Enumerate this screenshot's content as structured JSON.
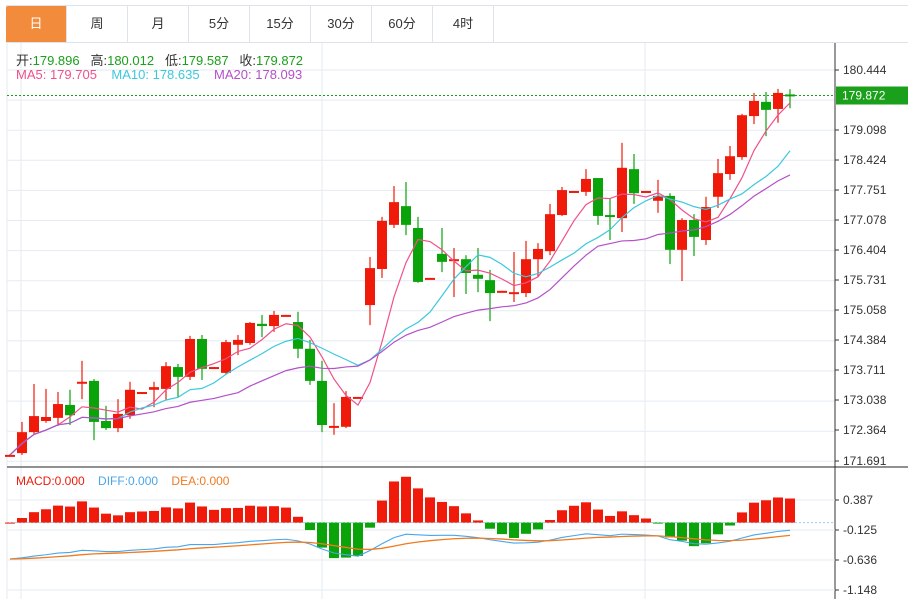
{
  "tabs": [
    {
      "label": "日",
      "active": true
    },
    {
      "label": "周"
    },
    {
      "label": "月"
    },
    {
      "label": "5分"
    },
    {
      "label": "15分"
    },
    {
      "label": "30分"
    },
    {
      "label": "60分"
    },
    {
      "label": "4时"
    }
  ],
  "ohlc_info": {
    "open_label": "开:",
    "open": "179.896",
    "high_label": "高:",
    "high": "180.012",
    "low_label": "低:",
    "low": "179.587",
    "close_label": "收:",
    "close": "179.872"
  },
  "ma_info": {
    "ma5": "MA5: 179.705",
    "ma10": "MA10: 178.635",
    "ma20": "MA20: 178.093"
  },
  "macd_info": {
    "macd": "MACD:0.000",
    "diff": "DIFF:0.000",
    "dea": "DEA:0.000"
  },
  "colors": {
    "up": "#f01a0a",
    "down": "#0aa30a",
    "ma5": "#f0508a",
    "ma10": "#3cc8dc",
    "ma20": "#b450c8",
    "diff": "#4aa6ea",
    "dea": "#f07a20",
    "tab_active": "#f28b3c",
    "price_tag": "#1aa01a"
  },
  "price_axis": {
    "ticks": [
      "180.444",
      "179.098",
      "178.424",
      "177.751",
      "177.078",
      "176.404",
      "175.731",
      "175.058",
      "174.384",
      "173.711",
      "173.038",
      "172.364",
      "171.691"
    ],
    "current": "179.872"
  },
  "macd_axis": {
    "ticks": [
      "0.387",
      "-0.125",
      "-0.636",
      "-1.148"
    ]
  },
  "chart_data": {
    "type": "candlestick",
    "ylim": [
      171.6,
      180.6
    ],
    "candles": [
      [
        171.8,
        171.81,
        171.83,
        171.79
      ],
      [
        171.85,
        172.32,
        172.55,
        171.81
      ],
      [
        172.32,
        172.68,
        173.4,
        172.26
      ],
      [
        172.57,
        172.66,
        173.29,
        172.53
      ],
      [
        172.64,
        172.95,
        173.22,
        172.46
      ],
      [
        172.93,
        172.7,
        173.27,
        172.48
      ],
      [
        173.44,
        173.45,
        173.92,
        173.06
      ],
      [
        173.47,
        172.55,
        173.51,
        172.14
      ],
      [
        172.57,
        172.41,
        172.91,
        172.37
      ],
      [
        172.41,
        172.73,
        173.06,
        172.32
      ],
      [
        172.7,
        173.27,
        173.45,
        172.62
      ],
      [
        173.21,
        173.22,
        173.22,
        173.21
      ],
      [
        173.27,
        173.33,
        173.45,
        172.88
      ],
      [
        173.29,
        173.8,
        173.89,
        173.04
      ],
      [
        173.78,
        173.56,
        173.85,
        173.11
      ],
      [
        173.56,
        174.41,
        174.48,
        173.49
      ],
      [
        174.41,
        173.74,
        174.5,
        173.49
      ],
      [
        173.77,
        173.78,
        173.78,
        173.77
      ],
      [
        173.65,
        174.34,
        174.39,
        173.62
      ],
      [
        174.28,
        174.39,
        174.5,
        174.05
      ],
      [
        174.32,
        174.77,
        174.79,
        174.28
      ],
      [
        174.75,
        174.7,
        174.95,
        174.45
      ],
      [
        174.7,
        174.95,
        175.04,
        174.57
      ],
      [
        174.94,
        174.95,
        174.95,
        174.94
      ],
      [
        174.79,
        174.19,
        175.02,
        173.98
      ],
      [
        174.19,
        173.47,
        174.39,
        173.38
      ],
      [
        173.47,
        172.48,
        173.92,
        172.32
      ],
      [
        172.45,
        172.46,
        172.97,
        172.26
      ],
      [
        172.44,
        173.11,
        173.24,
        172.41
      ],
      [
        173.1,
        173.11,
        173.11,
        173.1
      ],
      [
        175.17,
        176.0,
        176.25,
        174.72
      ],
      [
        175.98,
        177.06,
        177.15,
        175.78
      ],
      [
        176.97,
        177.48,
        177.84,
        176.9
      ],
      [
        177.39,
        176.97,
        177.93,
        176.74
      ],
      [
        176.9,
        175.69,
        177.15,
        175.67
      ],
      [
        175.77,
        175.78,
        175.78,
        175.77
      ],
      [
        176.32,
        176.14,
        176.9,
        175.91
      ],
      [
        176.16,
        176.2,
        176.45,
        175.35
      ],
      [
        176.2,
        175.89,
        176.29,
        175.42
      ],
      [
        175.85,
        175.76,
        176.45,
        175.46
      ],
      [
        175.73,
        175.44,
        175.96,
        174.81
      ],
      [
        175.48,
        175.49,
        175.49,
        175.48
      ],
      [
        175.42,
        175.46,
        176.36,
        175.24
      ],
      [
        175.44,
        176.2,
        176.61,
        175.35
      ],
      [
        176.2,
        176.43,
        176.56,
        175.8
      ],
      [
        176.38,
        177.21,
        177.44,
        176.29
      ],
      [
        177.19,
        177.75,
        177.82,
        177.17
      ],
      [
        177.73,
        177.73,
        177.73,
        177.73
      ],
      [
        177.71,
        178.0,
        178.22,
        177.62
      ],
      [
        178.02,
        177.17,
        178.02,
        176.97
      ],
      [
        177.19,
        177.15,
        177.57,
        176.63
      ],
      [
        177.12,
        178.25,
        178.81,
        176.81
      ],
      [
        178.22,
        177.68,
        178.56,
        177.44
      ],
      [
        177.72,
        177.73,
        177.73,
        177.72
      ],
      [
        177.51,
        177.62,
        177.98,
        177.24
      ],
      [
        177.62,
        176.41,
        177.68,
        176.09
      ],
      [
        176.41,
        177.08,
        177.12,
        175.71
      ],
      [
        177.08,
        176.7,
        177.21,
        176.27
      ],
      [
        176.63,
        177.37,
        177.6,
        176.52
      ],
      [
        177.6,
        178.13,
        178.45,
        177.35
      ],
      [
        178.11,
        178.51,
        178.74,
        177.98
      ],
      [
        178.49,
        179.43,
        179.46,
        178.43
      ],
      [
        179.41,
        179.75,
        179.93,
        179.23
      ],
      [
        179.73,
        179.55,
        179.95,
        178.96
      ],
      [
        179.57,
        179.93,
        180.02,
        179.26
      ],
      [
        179.896,
        179.872,
        180.012,
        179.587
      ]
    ],
    "ma_periods": [
      5,
      10,
      20
    ],
    "macd_ylim": [
      -1.3,
      0.55
    ]
  }
}
